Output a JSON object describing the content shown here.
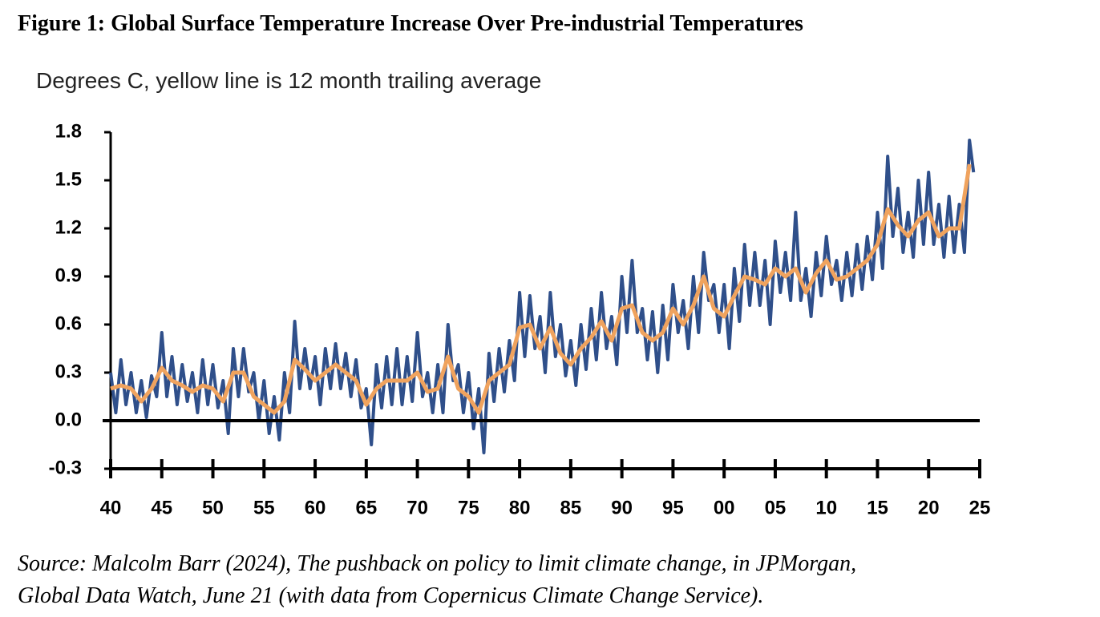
{
  "chart_data": {
    "type": "line",
    "title": "Figure 1: Global Surface Temperature Increase Over Pre-industrial Temperatures",
    "subtitle": "Degrees C, yellow line is 12 month trailing average",
    "source": [
      "Source: Malcolm Barr (2024), The pushback on policy to limit climate change, in JPMorgan,",
      "Global Data Watch, June 21 (with data from Copernicus Climate Change Service)."
    ],
    "xlim": [
      1940,
      2025
    ],
    "xticks": [
      {
        "value": 1940,
        "label": "40"
      },
      {
        "value": 1945,
        "label": "45"
      },
      {
        "value": 1950,
        "label": "50"
      },
      {
        "value": 1955,
        "label": "55"
      },
      {
        "value": 1960,
        "label": "60"
      },
      {
        "value": 1965,
        "label": "65"
      },
      {
        "value": 1970,
        "label": "70"
      },
      {
        "value": 1975,
        "label": "75"
      },
      {
        "value": 1980,
        "label": "80"
      },
      {
        "value": 1985,
        "label": "85"
      },
      {
        "value": 1990,
        "label": "90"
      },
      {
        "value": 1995,
        "label": "95"
      },
      {
        "value": 2000,
        "label": "00"
      },
      {
        "value": 2005,
        "label": "05"
      },
      {
        "value": 2010,
        "label": "10"
      },
      {
        "value": 2015,
        "label": "15"
      },
      {
        "value": 2020,
        "label": "20"
      },
      {
        "value": 2025,
        "label": "25"
      }
    ],
    "ylim": [
      -0.3,
      1.8
    ],
    "yticks": [
      1.8,
      1.5,
      1.2,
      0.9,
      0.6,
      0.3,
      {
        "value": 0,
        "label": "0.0"
      },
      -0.3
    ],
    "series": [
      {
        "color": "#2f4f8a",
        "x": [
          1940,
          1940.5,
          1941,
          1941.5,
          1942,
          1942.5,
          1943,
          1943.5,
          1944,
          1944.5,
          1945,
          1945.5,
          1946,
          1946.5,
          1947,
          1947.5,
          1948,
          1948.5,
          1949,
          1949.5,
          1950,
          1950.5,
          1951,
          1951.5,
          1952,
          1952.5,
          1953,
          1953.5,
          1954,
          1954.5,
          1955,
          1955.5,
          1956,
          1956.5,
          1957,
          1957.5,
          1958,
          1958.5,
          1959,
          1959.5,
          1960,
          1960.5,
          1961,
          1961.5,
          1962,
          1962.5,
          1963,
          1963.5,
          1964,
          1964.5,
          1965,
          1965.5,
          1966,
          1966.5,
          1967,
          1967.5,
          1968,
          1968.5,
          1969,
          1969.5,
          1970,
          1970.5,
          1971,
          1971.5,
          1972,
          1972.5,
          1973,
          1973.5,
          1974,
          1974.5,
          1975,
          1975.5,
          1976,
          1976.5,
          1977,
          1977.5,
          1978,
          1978.5,
          1979,
          1979.5,
          1980,
          1980.5,
          1981,
          1981.5,
          1982,
          1982.5,
          1983,
          1983.5,
          1984,
          1984.5,
          1985,
          1985.5,
          1986,
          1986.5,
          1987,
          1987.5,
          1988,
          1988.5,
          1989,
          1989.5,
          1990,
          1990.5,
          1991,
          1991.5,
          1992,
          1992.5,
          1993,
          1993.5,
          1994,
          1994.5,
          1995,
          1995.5,
          1996,
          1996.5,
          1997,
          1997.5,
          1998,
          1998.5,
          1999,
          1999.5,
          2000,
          2000.5,
          2001,
          2001.5,
          2002,
          2002.5,
          2003,
          2003.5,
          2004,
          2004.5,
          2005,
          2005.5,
          2006,
          2006.5,
          2007,
          2007.5,
          2008,
          2008.5,
          2009,
          2009.5,
          2010,
          2010.5,
          2011,
          2011.5,
          2012,
          2012.5,
          2013,
          2013.5,
          2014,
          2014.5,
          2015,
          2015.5,
          2016,
          2016.5,
          2017,
          2017.5,
          2018,
          2018.5,
          2019,
          2019.5,
          2020,
          2020.5,
          2021,
          2021.5,
          2022,
          2022.5,
          2023,
          2023.5,
          2024,
          2024.4
        ],
        "values": [
          0.3,
          0.05,
          0.38,
          0.1,
          0.3,
          0.05,
          0.25,
          0.02,
          0.28,
          0.15,
          0.55,
          0.15,
          0.4,
          0.1,
          0.35,
          0.12,
          0.3,
          0.05,
          0.38,
          0.1,
          0.35,
          0.08,
          0.25,
          -0.08,
          0.45,
          0.15,
          0.45,
          0.18,
          0.3,
          0.0,
          0.25,
          -0.08,
          0.15,
          -0.12,
          0.3,
          0.05,
          0.62,
          0.2,
          0.45,
          0.2,
          0.4,
          0.1,
          0.45,
          0.2,
          0.48,
          0.2,
          0.42,
          0.15,
          0.38,
          0.08,
          0.2,
          -0.15,
          0.35,
          0.08,
          0.4,
          0.1,
          0.45,
          0.1,
          0.4,
          0.12,
          0.55,
          0.15,
          0.3,
          0.05,
          0.35,
          0.05,
          0.6,
          0.25,
          0.35,
          0.05,
          0.3,
          -0.05,
          0.2,
          -0.2,
          0.42,
          0.12,
          0.45,
          0.18,
          0.5,
          0.25,
          0.8,
          0.4,
          0.78,
          0.45,
          0.65,
          0.3,
          0.8,
          0.4,
          0.6,
          0.28,
          0.5,
          0.22,
          0.6,
          0.32,
          0.7,
          0.38,
          0.8,
          0.45,
          0.65,
          0.35,
          0.9,
          0.55,
          1.0,
          0.55,
          0.7,
          0.38,
          0.68,
          0.3,
          0.72,
          0.38,
          0.85,
          0.55,
          0.75,
          0.45,
          0.9,
          0.55,
          1.05,
          0.75,
          0.85,
          0.55,
          0.85,
          0.45,
          0.95,
          0.62,
          1.1,
          0.72,
          1.05,
          0.72,
          1.0,
          0.6,
          1.12,
          0.8,
          1.05,
          0.75,
          1.3,
          0.75,
          0.95,
          0.65,
          1.05,
          0.78,
          1.15,
          0.85,
          1.0,
          0.75,
          1.05,
          0.78,
          1.1,
          0.82,
          1.15,
          0.88,
          1.3,
          0.95,
          1.65,
          1.15,
          1.45,
          1.05,
          1.3,
          1.02,
          1.5,
          1.1,
          1.55,
          1.1,
          1.35,
          1.02,
          1.4,
          1.05,
          1.35,
          1.05,
          1.75,
          1.55
        ]
      },
      {
        "color": "#f0a35e",
        "x": [
          1940,
          1941,
          1942,
          1943,
          1944,
          1945,
          1946,
          1947,
          1948,
          1949,
          1950,
          1951,
          1952,
          1953,
          1954,
          1955,
          1956,
          1957,
          1958,
          1959,
          1960,
          1961,
          1962,
          1963,
          1964,
          1965,
          1966,
          1967,
          1968,
          1969,
          1970,
          1971,
          1972,
          1973,
          1974,
          1975,
          1976,
          1977,
          1978,
          1979,
          1980,
          1981,
          1982,
          1983,
          1984,
          1985,
          1986,
          1987,
          1988,
          1989,
          1990,
          1991,
          1992,
          1993,
          1994,
          1995,
          1996,
          1997,
          1998,
          1999,
          2000,
          2001,
          2002,
          2003,
          2004,
          2005,
          2006,
          2007,
          2008,
          2009,
          2010,
          2011,
          2012,
          2013,
          2014,
          2015,
          2016,
          2017,
          2018,
          2019,
          2020,
          2021,
          2022,
          2023,
          2024
        ],
        "values": [
          0.2,
          0.22,
          0.2,
          0.12,
          0.2,
          0.33,
          0.25,
          0.22,
          0.18,
          0.22,
          0.2,
          0.12,
          0.3,
          0.3,
          0.15,
          0.1,
          0.05,
          0.12,
          0.38,
          0.32,
          0.25,
          0.3,
          0.35,
          0.3,
          0.25,
          0.1,
          0.2,
          0.25,
          0.25,
          0.25,
          0.3,
          0.18,
          0.2,
          0.4,
          0.2,
          0.15,
          0.05,
          0.25,
          0.3,
          0.35,
          0.58,
          0.6,
          0.45,
          0.58,
          0.42,
          0.35,
          0.45,
          0.52,
          0.62,
          0.5,
          0.7,
          0.72,
          0.55,
          0.5,
          0.55,
          0.7,
          0.6,
          0.72,
          0.9,
          0.7,
          0.65,
          0.78,
          0.9,
          0.88,
          0.85,
          0.95,
          0.9,
          0.95,
          0.8,
          0.92,
          1.0,
          0.88,
          0.9,
          0.95,
          1.0,
          1.1,
          1.32,
          1.22,
          1.15,
          1.25,
          1.3,
          1.15,
          1.2,
          1.2,
          1.6
        ]
      }
    ]
  }
}
